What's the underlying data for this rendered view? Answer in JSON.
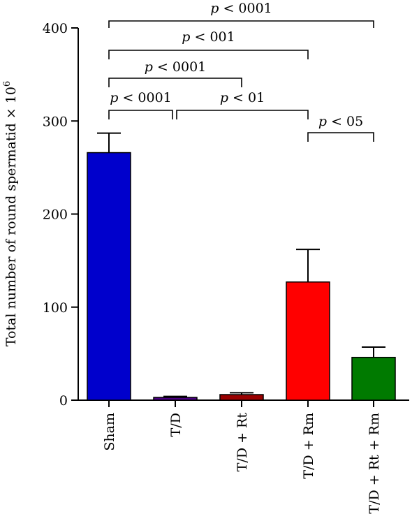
{
  "chart_data": {
    "type": "bar",
    "ylabel": "Total number of round spermatid × 10",
    "ylabel_superscript": "6",
    "ylim": [
      0,
      400
    ],
    "yticks": [
      0,
      100,
      200,
      300,
      400
    ],
    "categories": [
      "Sham",
      "T/D",
      "T/D + Rt",
      "T/D + Rm",
      "T/D + Rt + Rm"
    ],
    "values": [
      266,
      3,
      6,
      127,
      46
    ],
    "errors": [
      21,
      1,
      2,
      35,
      11
    ],
    "colors": [
      "#0000cc",
      "#4b0082",
      "#990000",
      "#ff0000",
      "#007a00"
    ],
    "significance": [
      {
        "from": 0,
        "to": 4,
        "label_italic": "p",
        "label_rest": " < 0001"
      },
      {
        "from": 0,
        "to": 3,
        "label_italic": "p",
        "label_rest": " < 001"
      },
      {
        "from": 0,
        "to": 2,
        "label_italic": "p",
        "label_rest": " < 0001"
      },
      {
        "from": 0,
        "to": 1,
        "label_italic": "p",
        "label_rest": " < 0001"
      },
      {
        "from": 1,
        "to": 3,
        "label_italic": "p",
        "label_rest": " < 01"
      },
      {
        "from": 3,
        "to": 4,
        "label_italic": "p",
        "label_rest": " < 05"
      }
    ]
  }
}
